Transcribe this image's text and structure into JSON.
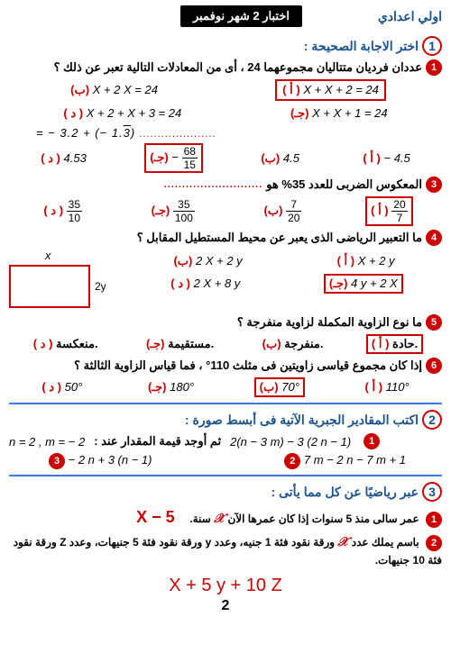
{
  "header": {
    "badge": "اختبار 2 شهر نوفمبر",
    "grade": "اولي اعدادي"
  },
  "s1": {
    "title": "اختر الاجابة الصحيحة :",
    "q1": {
      "text": "عددان فرديان متتاليان مجموعهما 24 ، أى من المعادلات التالية تعبر عن ذلك ؟",
      "a": "X + X + 2 = 24",
      "b": "X + 2 X = 24",
      "c": "X + X + 1 = 24",
      "d": "X + 2 + X + 3 = 24"
    },
    "dots2": "= − 3.2 + (− 1.3̅)",
    "q2": {
      "a": "− 4.5",
      "b": "4.5",
      "c": "− 68/15",
      "d": "4.53"
    },
    "q3": {
      "text": "المعكوس الضربى للعدد 35% هو",
      "a": "20/7",
      "b": "7/20",
      "c": "35/100",
      "d": "35/10"
    },
    "q4": {
      "text": "ما التعبير الرياضى الذى يعبر عن محيط المستطيل المقابل ؟",
      "a": "X + 2 y",
      "b": "2 X + 2 y",
      "c": "4 y + 2 X",
      "d": "2 X + 8 y",
      "xlabel": "x",
      "ylabel": "2y"
    },
    "q5": {
      "text": "ما نوع الزاوية المكملة لزاوية منفرجة ؟",
      "a": "حادة.",
      "b": "منفرجة.",
      "c": "مستقيمة.",
      "d": "منعكسة."
    },
    "q6": {
      "text": "إذا كان مجموع قياسى زاويتين فى مثلث 110° ، فما قياس الزاوية الثالثة ؟",
      "a": "110°",
      "b": "70°",
      "c": "180°",
      "d": "50°"
    }
  },
  "s2": {
    "title": "اكتب المقادير الجبرية الآتية فى أبسط صورة :",
    "e1": "2(n − 3 m) − 3 (2 n − 1)",
    "e1_tail": "ثم أوجد قيمة المقدار عند :",
    "e1_vals": "n = 2 , m = − 2",
    "e2": "7 m − 2 n − 7 m + 1",
    "e3": "− 2 n + 3 (n − 1)"
  },
  "s3": {
    "title": "عبر رياضيًا عن كل مما يأتى :",
    "p1_a": "عمر سالى منذ 5 سنوات إذا كان عمرها الآن",
    "p1_b": "سنة.",
    "p1_ans": "X − 5",
    "p2_a": "باسم يملك عدد",
    "p2_b": "ورقة نقود فئة 1 جنيه، وعدد y ورقة نقود فئة 5 جنيهات، وعدد Z ورقة نقود فئة 10 جنيهات.",
    "final": "X + 5 y + 10 Z"
  },
  "labels": {
    "a": "( أ )",
    "b": "(ب)",
    "c": "(جـ)",
    "d": "( د )"
  },
  "page": "2"
}
